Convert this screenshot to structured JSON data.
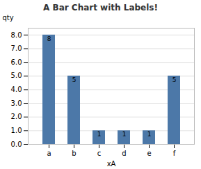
{
  "chart_data": {
    "type": "bar",
    "title": "A Bar Chart with Labels!",
    "categories": [
      "a",
      "b",
      "c",
      "d",
      "e",
      "f"
    ],
    "values": [
      8,
      5,
      1,
      1,
      1,
      5
    ],
    "color": "#4c78a8",
    "xlabel": "xA",
    "ylabel": "qty",
    "ylim": [
      0,
      8.5
    ],
    "yticks": [
      {
        "value": 0,
        "label": "0.0"
      },
      {
        "value": 1,
        "label": "1.0"
      },
      {
        "value": 2,
        "label": "2.0"
      },
      {
        "value": 3,
        "label": "3.0"
      },
      {
        "value": 4,
        "label": "4.0"
      },
      {
        "value": 5,
        "label": "5.0"
      },
      {
        "value": 6,
        "label": "6.0"
      },
      {
        "value": 7,
        "label": "7.0"
      },
      {
        "value": 8,
        "label": "8.0"
      }
    ],
    "grid": true,
    "data_labels": true
  }
}
